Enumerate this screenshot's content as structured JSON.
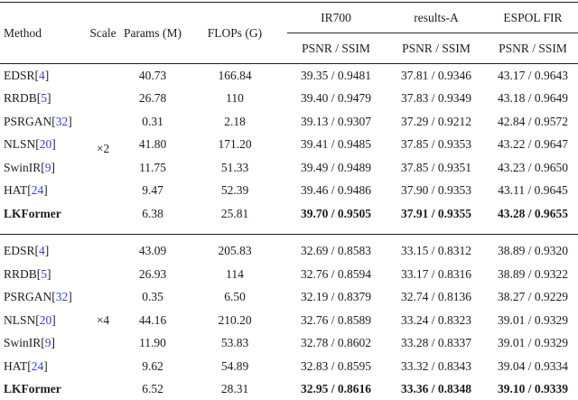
{
  "table": {
    "columns": {
      "method": "Method",
      "scale": "Scale",
      "params": "Params (M)",
      "flops": "FLOPs (G)"
    },
    "groups": [
      {
        "label": "IR700",
        "sub": "PSNR / SSIM"
      },
      {
        "label": "results-A",
        "sub": "PSNR / SSIM"
      },
      {
        "label": "ESPOL FIR",
        "sub": "PSNR / SSIM"
      }
    ],
    "colors": {
      "text": "#1c1c1c",
      "citation": "#3342cc",
      "rule": "#1c1c1c"
    },
    "blocks": [
      {
        "scale": "×2",
        "rows": [
          {
            "method": "EDSR",
            "cite": "4",
            "params": "40.73",
            "flops": "166.84",
            "metrics": [
              "39.35 / 0.9481",
              "37.81 / 0.9346",
              "43.17 / 0.9643"
            ],
            "bold": false
          },
          {
            "method": "RRDB",
            "cite": "5",
            "params": "26.78",
            "flops": "110",
            "metrics": [
              "39.40 / 0.9479",
              "37.83 / 0.9349",
              "43.18 / 0.9649"
            ],
            "bold": false
          },
          {
            "method": "PSRGAN",
            "cite": "32",
            "params": "0.31",
            "flops": "2.18",
            "metrics": [
              "39.13 / 0.9307",
              "37.29 / 0.9212",
              "42.84 / 0.9572"
            ],
            "bold": false
          },
          {
            "method": "NLSN",
            "cite": "20",
            "params": "41.80",
            "flops": "171.20",
            "metrics": [
              "39.41 / 0.9485",
              "37.85 / 0.9353",
              "43.22 / 0.9647"
            ],
            "bold": false
          },
          {
            "method": "SwinIR",
            "cite": "9",
            "params": "11.75",
            "flops": "51.33",
            "metrics": [
              "39.49 / 0.9489",
              "37.85 / 0.9351",
              "43.23 / 0.9650"
            ],
            "bold": false
          },
          {
            "method": "HAT",
            "cite": "24",
            "params": "9.47",
            "flops": "52.39",
            "metrics": [
              "39.46 / 0.9486",
              "37.90 / 0.9353",
              "43.11 / 0.9645"
            ],
            "bold": false
          },
          {
            "method": "LKFormer",
            "cite": null,
            "params": "6.38",
            "flops": "25.81",
            "metrics": [
              "39.70 / 0.9505",
              "37.91 / 0.9355",
              "43.28 / 0.9655"
            ],
            "bold": true
          }
        ]
      },
      {
        "scale": "×4",
        "rows": [
          {
            "method": "EDSR",
            "cite": "4",
            "params": "43.09",
            "flops": "205.83",
            "metrics": [
              "32.69 / 0.8583",
              "33.15 / 0.8312",
              "38.89 / 0.9320"
            ],
            "bold": false
          },
          {
            "method": "RRDB",
            "cite": "5",
            "params": "26.93",
            "flops": "114",
            "metrics": [
              "32.76 / 0.8594",
              "33.17 / 0.8316",
              "38.89 / 0.9322"
            ],
            "bold": false
          },
          {
            "method": "PSRGAN",
            "cite": "32",
            "params": "0.35",
            "flops": "6.50",
            "metrics": [
              "32.19 / 0.8379",
              "32.74 / 0.8136",
              "38.27 / 0.9229"
            ],
            "bold": false
          },
          {
            "method": "NLSN",
            "cite": "20",
            "params": "44.16",
            "flops": "210.20",
            "metrics": [
              "32.76 / 0.8589",
              "33.24 / 0.8323",
              "39.01 / 0.9329"
            ],
            "bold": false
          },
          {
            "method": "SwinIR",
            "cite": "9",
            "params": "11.90",
            "flops": "53.83",
            "metrics": [
              "32.78 / 0.8602",
              "33.28 / 0.8337",
              "39.01 / 0.9329"
            ],
            "bold": false
          },
          {
            "method": "HAT",
            "cite": "24",
            "params": "9.62",
            "flops": "54.89",
            "metrics": [
              "32.83 / 0.8595",
              "33.32 / 0.8343",
              "39.04 / 0.9334"
            ],
            "bold": false
          },
          {
            "method": "LKFormer",
            "cite": null,
            "params": "6.52",
            "flops": "28.31",
            "metrics": [
              "32.95 / 0.8616",
              "33.36 / 0.8348",
              "39.10 / 0.9339"
            ],
            "bold": true
          }
        ]
      }
    ]
  }
}
